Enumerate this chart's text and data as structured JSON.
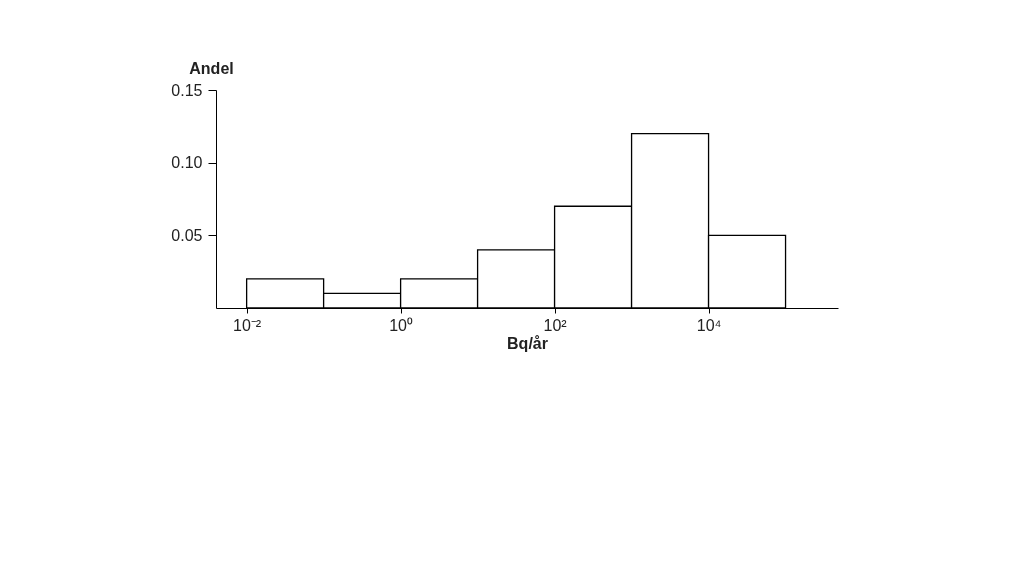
{
  "chart_data": {
    "type": "histogram",
    "xlabel": "Bq/år",
    "ylabel": "Andel",
    "log": "x",
    "color": "#ffffff",
    "bins": [
      0.01,
      0.1,
      1,
      10,
      100,
      1000,
      10000,
      100000
    ],
    "values": [
      0.02,
      0.01,
      0.02,
      0.04,
      0.07,
      0.12,
      0.05
    ],
    "xlim": [
      0.004,
      480000
    ],
    "xticks": [
      {
        "value": 0.01,
        "label": "10⁻²"
      },
      {
        "value": 1,
        "label": "10⁰"
      },
      {
        "value": 100,
        "label": "10²"
      },
      {
        "value": 10000,
        "label": "10⁴"
      }
    ],
    "ylim": [
      0,
      0.15
    ],
    "yticks": [
      0.05,
      {
        "value": 0.1,
        "label": "0.10"
      },
      {
        "value": 0.15,
        "label": "0.15"
      }
    ]
  }
}
